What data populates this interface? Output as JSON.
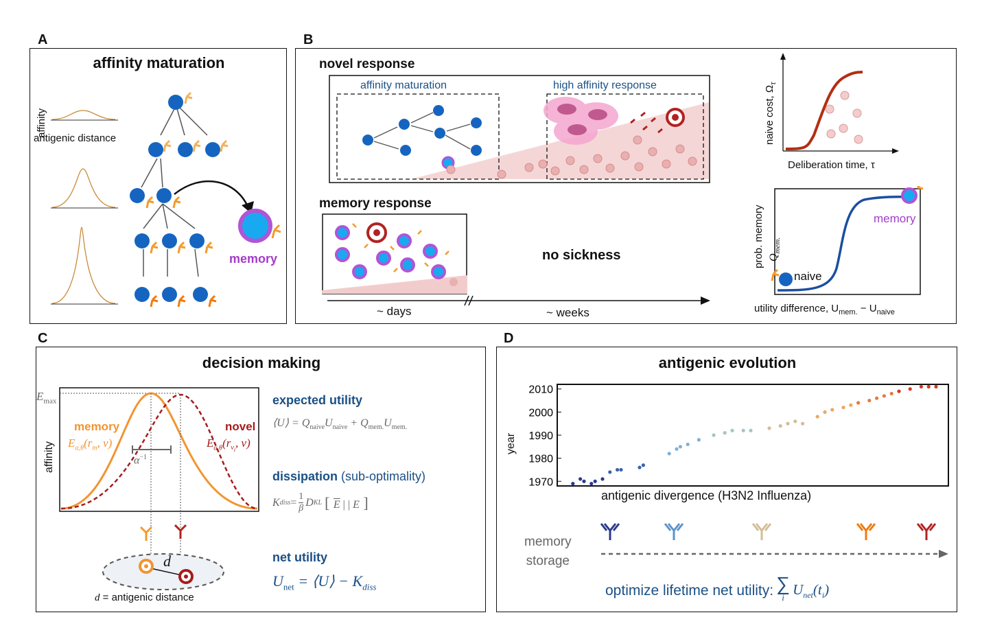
{
  "panelA": {
    "label": "A",
    "title": "affinity maturation",
    "ylabel": "affinity",
    "xlabel": "antigenic distance",
    "memory": "memory"
  },
  "panelB": {
    "label": "B",
    "novel": "novel response",
    "affinity_maturation": "affinity maturation",
    "high_affinity": "high affinity response",
    "memory_response": "memory response",
    "no_sickness": "no sickness",
    "days": "~ days",
    "weeks": "~ weeks",
    "naive_cost": "naive cost, Ω",
    "naive_cost_sub": "τ",
    "deliberation": "Deliberation time, τ",
    "prob_memory": "prob. memory",
    "q_mem": "Q",
    "q_mem_sub": "mem.",
    "memory_label": "memory",
    "naive_label": "naive",
    "utility_diff": "utility difference, U",
    "utility_diff_sub1": "mem.",
    "utility_diff_mid": " − U",
    "utility_diff_sub2": "naive"
  },
  "panelC": {
    "label": "C",
    "title": "decision making",
    "emax": "E",
    "emax_sub": "max",
    "memory": "memory",
    "memory_expr": "E",
    "memory_expr_sub": "α,θ",
    "memory_expr_arg": "(r",
    "memory_expr_arg_sub": "m",
    "memory_expr_end": ", ν)",
    "novel": "novel",
    "novel_expr": "E",
    "novel_expr_sub": "α,θ",
    "novel_expr_arg": "(r",
    "novel_expr_arg_sub": "ν",
    "novel_expr_arg_subsub": "i",
    "novel_expr_end": ", ν)",
    "alpha_inv": "α",
    "alpha_inv_sup": "−1",
    "affinity": "affinity",
    "d": "d",
    "d_caption_var": "d",
    "d_caption": " = antigenic distance",
    "expected_utility": "expected utility",
    "expected_utility_eq": "⟨U⟩ = Q",
    "eq_sub1": "naive",
    "eq_mid1": "U",
    "eq_sub2": "naive",
    "eq_mid2": " + Q",
    "eq_sub3": "mem.",
    "eq_mid3": "U",
    "eq_sub4": "mem.",
    "dissipation": "dissipation",
    "dissipation_paren": " (sub-optimality)",
    "kdiss": "K",
    "kdiss_sub": "diss",
    "kdiss_eq": " = ",
    "frac_num": "1",
    "frac_den": "β",
    "dkl": "D",
    "dkl_sub": "KL",
    "net_utility": "net utility",
    "unet": "U",
    "unet_sub": "net",
    "unet_eq": " = ⟨U⟩ − K",
    "unet_sub2": "diss"
  },
  "panelD": {
    "label": "D",
    "title": "antigenic evolution",
    "ylabel": "year",
    "xlabel": "antigenic divergence (H3N2 Influenza)",
    "memory_storage_1": "memory",
    "memory_storage_2": "storage",
    "optimize": "optimize lifetime net utility: ",
    "sum_sub": "i",
    "optimize_term": "U",
    "optimize_term_sub": "net",
    "optimize_term_arg": "(t",
    "optimize_term_arg_sub": "i",
    "optimize_term_end": ")"
  },
  "chart_data": {
    "type": "scatter",
    "title": "",
    "xlabel": "antigenic divergence (H3N2 Influenza)",
    "ylabel": "year",
    "ylim": [
      1968,
      2012
    ],
    "yticks": [
      1970,
      1980,
      1990,
      2000,
      2010
    ],
    "grid": false,
    "series": [
      {
        "values": [
          [
            2,
            1969
          ],
          [
            4,
            1971
          ],
          [
            5,
            1970
          ],
          [
            7,
            1969
          ],
          [
            8,
            1970
          ],
          [
            10,
            1971
          ]
        ],
        "color": "#2b3a8c"
      },
      {
        "values": [
          [
            12,
            1974
          ],
          [
            14,
            1975
          ],
          [
            15,
            1975
          ],
          [
            20,
            1976
          ],
          [
            21,
            1977
          ]
        ],
        "color": "#3a63a8"
      },
      {
        "values": [
          [
            28,
            1982
          ],
          [
            30,
            1984
          ],
          [
            31,
            1985
          ],
          [
            33,
            1986
          ],
          [
            36,
            1988
          ]
        ],
        "color": "#7fb0d6"
      },
      {
        "values": [
          [
            40,
            1990
          ],
          [
            43,
            1991
          ],
          [
            45,
            1992
          ],
          [
            48,
            1992
          ],
          [
            50,
            1992
          ]
        ],
        "color": "#a8c4c4"
      },
      {
        "values": [
          [
            55,
            1993
          ],
          [
            58,
            1994
          ],
          [
            60,
            1995
          ],
          [
            62,
            1996
          ],
          [
            64,
            1995
          ]
        ],
        "color": "#d3bc96"
      },
      {
        "values": [
          [
            68,
            1998
          ],
          [
            70,
            2000
          ],
          [
            72,
            2001
          ],
          [
            75,
            2002
          ],
          [
            77,
            2003
          ]
        ],
        "color": "#eaa85e"
      },
      {
        "values": [
          [
            79,
            2004
          ],
          [
            82,
            2005
          ],
          [
            84,
            2006
          ],
          [
            86,
            2007
          ],
          [
            88,
            2008
          ]
        ],
        "color": "#e77a3a"
      },
      {
        "values": [
          [
            90,
            2009
          ],
          [
            93,
            2010
          ],
          [
            96,
            2011
          ],
          [
            98,
            2011
          ],
          [
            100,
            2011
          ]
        ],
        "color": "#d43a22"
      }
    ]
  },
  "colors": {
    "naive_blue": "#1565c0",
    "memory_cyan": "#19a9f0",
    "memory_ring": "#b154d6",
    "antibody_orange": "#f39a2a",
    "antibody_red": "#b22222",
    "curve_orange": "#f29431",
    "curve_red": "#a61c1c",
    "navy": "#1a5085"
  }
}
